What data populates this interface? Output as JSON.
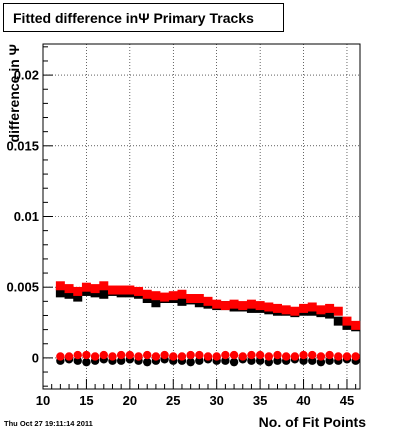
{
  "chart_data": {
    "type": "scatter",
    "title": "Fitted difference inΨ  Primary Tracks",
    "xlabel": "No. of Fit Points",
    "ylabel": "difference in Ψ",
    "xlim": [
      10,
      46.5
    ],
    "ylim": [
      -0.0022,
      0.0222
    ],
    "grid": true,
    "x_ticks": [
      10,
      15,
      20,
      25,
      30,
      35,
      40,
      45
    ],
    "y_ticks": [
      0,
      0.005,
      0.01,
      0.015,
      0.02
    ],
    "y_tick_labels": [
      "0",
      "0.005",
      "0.01",
      "0.015",
      "0.02"
    ],
    "x": [
      12,
      13,
      14,
      15,
      16,
      17,
      18,
      19,
      20,
      21,
      22,
      23,
      24,
      25,
      26,
      27,
      28,
      29,
      30,
      31,
      32,
      33,
      34,
      35,
      36,
      37,
      38,
      39,
      40,
      41,
      42,
      43,
      44,
      45,
      46
    ],
    "series": [
      {
        "color": "#000000",
        "marker": "square",
        "values": [
          0.0046,
          0.0045,
          0.0043,
          0.0047,
          0.0046,
          0.0045,
          0.0047,
          0.0046,
          0.0046,
          0.0045,
          0.0042,
          0.0039,
          0.0042,
          0.0042,
          0.004,
          0.0041,
          0.0039,
          0.0038,
          0.0037,
          0.0037,
          0.0036,
          0.0036,
          0.0035,
          0.0035,
          0.0034,
          0.0033,
          0.0033,
          0.0032,
          0.0033,
          0.0033,
          0.0032,
          0.0031,
          0.0026,
          0.0023,
          0.0022
        ]
      },
      {
        "color": "#ff0000",
        "marker": "square",
        "values": [
          0.0051,
          0.0049,
          0.0047,
          0.005,
          0.0049,
          0.0051,
          0.0048,
          0.0048,
          0.0048,
          0.0047,
          0.0045,
          0.0044,
          0.0043,
          0.0044,
          0.0045,
          0.0042,
          0.0042,
          0.004,
          0.0038,
          0.0037,
          0.0038,
          0.0037,
          0.0038,
          0.0037,
          0.0036,
          0.0035,
          0.0034,
          0.0033,
          0.0035,
          0.0036,
          0.0034,
          0.0035,
          0.0033,
          0.0026,
          0.0023
        ]
      },
      {
        "color": "#000000",
        "marker": "circle",
        "values": [
          -0.0002,
          -0.0001,
          -0.0002,
          -0.0003,
          -0.0002,
          -0.0001,
          -0.0002,
          -0.0002,
          -0.0001,
          -0.0002,
          -0.0003,
          -0.0002,
          -0.0001,
          -0.0002,
          -0.0002,
          -0.0003,
          -0.0002,
          -0.0001,
          -0.0002,
          -0.0002,
          -0.0003,
          -0.0001,
          -0.0002,
          -0.0002,
          -0.0003,
          -0.0002,
          -0.0002,
          -0.0001,
          -0.0002,
          -0.0002,
          -0.0003,
          -0.0002,
          -0.0002,
          -0.0001,
          -0.0002
        ]
      },
      {
        "color": "#ff0000",
        "marker": "circle",
        "values": [
          0.0001,
          0.0001,
          0.0002,
          0.0002,
          0.0001,
          0.0002,
          0.0001,
          0.0002,
          0.0002,
          0.0001,
          0.0002,
          0.0001,
          0.0002,
          0.0001,
          0.0001,
          0.0002,
          0.0002,
          0.0001,
          0.0001,
          0.0002,
          0.0002,
          0.0001,
          0.0002,
          0.0002,
          0.0001,
          0.0002,
          0.0001,
          0.0001,
          0.0002,
          0.0002,
          0.0001,
          0.0002,
          0.0001,
          0.0001,
          0.0001
        ]
      }
    ]
  },
  "timestamp": "Thu Oct 27 19:11:14 2011"
}
